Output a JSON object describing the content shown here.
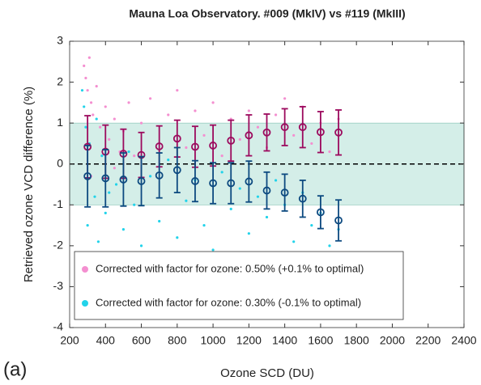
{
  "chart_data": {
    "type": "scatter",
    "title": "Mauna Loa Observatory.  #009 (MkIV) vs #119 (MkIII)",
    "panel_label": "(a)",
    "x_label": "Ozone SCD (DU)",
    "y_label": "Retrieved ozone VCD difference (%)",
    "xlim": [
      200,
      2400
    ],
    "ylim": [
      -4,
      3
    ],
    "xticks": [
      200,
      400,
      600,
      800,
      1000,
      1200,
      1400,
      1600,
      1800,
      2000,
      2200,
      2400
    ],
    "yticks": [
      -4,
      -3,
      -2,
      -1,
      0,
      1,
      2,
      3
    ],
    "band": [
      -1,
      1
    ],
    "band_color": "#d4eee8",
    "reference_line": 0,
    "legend_position": "lower left",
    "series": [
      {
        "name": "Corrected with factor for ozone: 0.50% (+0.1% to optimal)",
        "color": "#f48fd0",
        "x": [
          280,
          290,
          300,
          310,
          320,
          330,
          350,
          370,
          400,
          420,
          450,
          480,
          500,
          530,
          560,
          600,
          650,
          700,
          750,
          800,
          850,
          900,
          950,
          1000,
          1050,
          1100,
          1150,
          1200,
          1250,
          1300,
          1350,
          1400,
          1450,
          1500,
          1550,
          1600,
          1650,
          1700,
          320,
          450
        ],
        "values": [
          2.4,
          2.1,
          1.8,
          2.6,
          1.5,
          1.2,
          1.9,
          0.9,
          1.4,
          0.6,
          1.1,
          0.3,
          0.8,
          1.5,
          0.2,
          1.0,
          1.6,
          0.5,
          1.2,
          1.8,
          0.4,
          1.3,
          0.7,
          1.5,
          0.2,
          1.1,
          0.6,
          1.3,
          0.9,
          0.4,
          1.2,
          1.6,
          0.7,
          1.4,
          0.5,
          1.0,
          0.3,
          1.1,
          -0.3,
          -0.1
        ]
      },
      {
        "name": "Corrected with factor for ozone: 0.30% (-0.1% to optimal)",
        "color": "#22d3ea",
        "x": [
          270,
          280,
          290,
          300,
          310,
          320,
          340,
          360,
          380,
          400,
          430,
          460,
          500,
          530,
          560,
          600,
          650,
          700,
          750,
          800,
          850,
          900,
          950,
          1000,
          1050,
          1100,
          1150,
          1200,
          1250,
          1300,
          1350,
          1400,
          1450,
          1500,
          1550,
          1600,
          1650,
          1700,
          350,
          420
        ],
        "values": [
          1.8,
          1.4,
          0.9,
          -1.5,
          0.5,
          -2.2,
          -0.8,
          -1.9,
          0.2,
          -1.2,
          -2.5,
          -0.5,
          -1.6,
          0.3,
          -1.0,
          -2.0,
          -0.3,
          -1.4,
          0.1,
          -1.8,
          -0.9,
          -0.4,
          -1.5,
          -2.1,
          -0.2,
          -1.1,
          -0.6,
          -1.7,
          -0.8,
          -1.3,
          -0.4,
          -1.0,
          -1.9,
          -0.7,
          -1.5,
          -1.2,
          -2.0,
          -1.6,
          1.1,
          -0.7
        ]
      }
    ],
    "binned_means": [
      {
        "color": "#9c0a5e",
        "x": [
          300,
          400,
          500,
          600,
          700,
          800,
          900,
          1000,
          1100,
          1200,
          1300,
          1400,
          1500,
          1600,
          1700
        ],
        "values": [
          0.42,
          0.3,
          0.25,
          0.22,
          0.43,
          0.62,
          0.42,
          0.45,
          0.57,
          0.7,
          0.77,
          0.9,
          0.9,
          0.78,
          0.77
        ],
        "errors": [
          0.76,
          0.65,
          0.6,
          0.55,
          0.5,
          0.45,
          0.5,
          0.5,
          0.5,
          0.5,
          0.45,
          0.45,
          0.5,
          0.5,
          0.55
        ]
      },
      {
        "color": "#0d4a80",
        "x": [
          300,
          400,
          500,
          600,
          700,
          800,
          900,
          1000,
          1100,
          1200,
          1300,
          1400,
          1500,
          1600,
          1700
        ],
        "values": [
          -0.3,
          -0.35,
          -0.38,
          -0.42,
          -0.28,
          -0.15,
          -0.42,
          -0.47,
          -0.47,
          -0.43,
          -0.65,
          -0.7,
          -0.85,
          -1.18,
          -1.38
        ],
        "errors": [
          0.75,
          0.7,
          0.65,
          0.6,
          0.55,
          0.55,
          0.5,
          0.5,
          0.5,
          0.5,
          0.45,
          0.45,
          0.45,
          0.4,
          0.5
        ]
      }
    ]
  }
}
